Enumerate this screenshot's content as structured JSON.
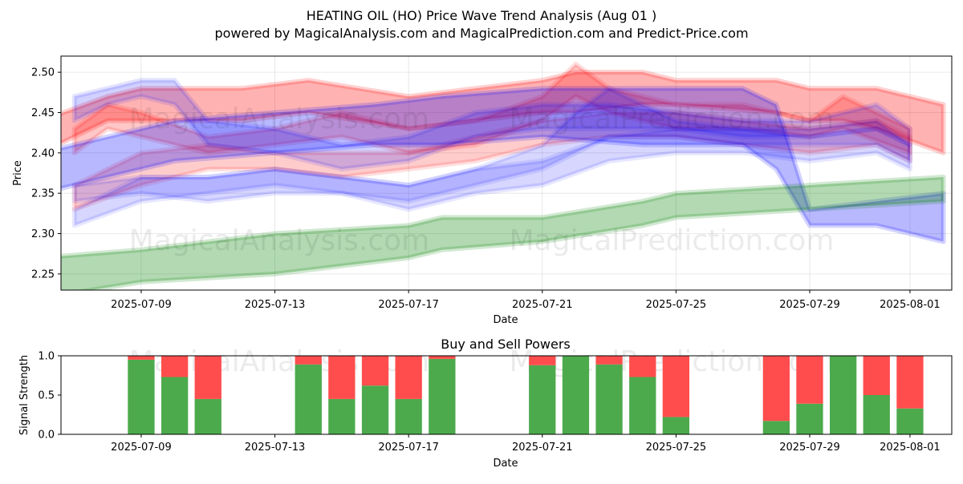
{
  "title_line1": "HEATING OIL (HO) Price Wave Trend Analysis (Aug 01 )",
  "title_line2": "powered by MagicalAnalysis.com and MagicalPrediction.com and Predict-Price.com",
  "watermarks": [
    "MagicalAnalysis.com",
    "MagicalPrediction.com"
  ],
  "chart_data": [
    {
      "type": "area",
      "title": "",
      "xlabel": "Date",
      "ylabel": "Price",
      "xlim": [
        "2025-07-06",
        "2025-08-02"
      ],
      "ylim": [
        2.23,
        2.52
      ],
      "yticks": [
        2.25,
        2.3,
        2.35,
        2.4,
        2.45,
        2.5
      ],
      "xticks": [
        "2025-07-09",
        "2025-07-13",
        "2025-07-17",
        "2025-07-21",
        "2025-07-25",
        "2025-07-29",
        "2025-08-01"
      ],
      "grid": true,
      "colors": {
        "red": "#ff0000",
        "blue": "#0000ff",
        "green": "#008000"
      },
      "series": [
        {
          "color": "red",
          "opacity": 0.3,
          "dates": [
            "2025-07-06",
            "2025-07-08",
            "2025-07-09",
            "2025-07-12",
            "2025-07-14",
            "2025-07-17",
            "2025-07-19",
            "2025-07-21",
            "2025-07-22",
            "2025-07-24",
            "2025-07-25",
            "2025-07-28",
            "2025-07-29",
            "2025-07-30",
            "2025-07-31",
            "2025-08-02"
          ],
          "lower": [
            2.4,
            2.44,
            2.44,
            2.44,
            2.45,
            2.43,
            2.44,
            2.45,
            2.45,
            2.46,
            2.46,
            2.45,
            2.44,
            2.44,
            2.43,
            2.4
          ],
          "upper": [
            2.44,
            2.47,
            2.48,
            2.48,
            2.49,
            2.47,
            2.48,
            2.49,
            2.5,
            2.5,
            2.49,
            2.49,
            2.48,
            2.48,
            2.48,
            2.46
          ]
        },
        {
          "color": "red",
          "opacity": 0.22,
          "dates": [
            "2025-07-07",
            "2025-07-08",
            "2025-07-09",
            "2025-07-11",
            "2025-07-13",
            "2025-07-15",
            "2025-07-17",
            "2025-07-19",
            "2025-07-21",
            "2025-07-22",
            "2025-07-23",
            "2025-07-25",
            "2025-07-27",
            "2025-07-29",
            "2025-07-30",
            "2025-08-01"
          ],
          "lower": [
            2.4,
            2.43,
            2.42,
            2.4,
            2.41,
            2.42,
            2.4,
            2.41,
            2.44,
            2.47,
            2.45,
            2.43,
            2.43,
            2.42,
            2.43,
            2.4
          ],
          "upper": [
            2.43,
            2.46,
            2.45,
            2.42,
            2.43,
            2.45,
            2.43,
            2.44,
            2.47,
            2.51,
            2.48,
            2.46,
            2.46,
            2.44,
            2.47,
            2.43
          ]
        },
        {
          "color": "red",
          "opacity": 0.2,
          "dates": [
            "2025-07-07",
            "2025-07-09",
            "2025-07-11",
            "2025-07-13",
            "2025-07-15",
            "2025-07-17",
            "2025-07-19",
            "2025-07-21",
            "2025-07-23",
            "2025-07-25",
            "2025-07-27",
            "2025-07-29",
            "2025-07-31",
            "2025-08-01"
          ],
          "lower": [
            2.33,
            2.36,
            2.38,
            2.38,
            2.37,
            2.38,
            2.39,
            2.41,
            2.42,
            2.42,
            2.41,
            2.4,
            2.41,
            2.39
          ],
          "upper": [
            2.36,
            2.4,
            2.41,
            2.4,
            2.4,
            2.4,
            2.42,
            2.44,
            2.45,
            2.45,
            2.44,
            2.43,
            2.44,
            2.42
          ]
        },
        {
          "color": "blue",
          "opacity": 0.28,
          "dates": [
            "2025-07-06",
            "2025-07-08",
            "2025-07-10",
            "2025-07-13",
            "2025-07-16",
            "2025-07-18",
            "2025-07-21",
            "2025-07-24",
            "2025-07-27",
            "2025-07-28",
            "2025-07-29",
            "2025-07-31",
            "2025-08-02"
          ],
          "lower": [
            2.35,
            2.37,
            2.39,
            2.4,
            2.41,
            2.41,
            2.42,
            2.41,
            2.41,
            2.38,
            2.31,
            2.31,
            2.29
          ],
          "upper": [
            2.4,
            2.42,
            2.44,
            2.45,
            2.46,
            2.47,
            2.48,
            2.48,
            2.48,
            2.46,
            2.33,
            2.34,
            2.35
          ]
        },
        {
          "color": "blue",
          "opacity": 0.18,
          "dates": [
            "2025-07-07",
            "2025-07-08",
            "2025-07-09",
            "2025-07-10",
            "2025-07-11",
            "2025-07-13",
            "2025-07-15",
            "2025-07-17",
            "2025-07-19",
            "2025-07-21",
            "2025-07-23",
            "2025-07-25",
            "2025-07-27",
            "2025-07-29",
            "2025-07-31",
            "2025-08-01"
          ],
          "lower": [
            2.44,
            2.46,
            2.47,
            2.46,
            2.41,
            2.4,
            2.38,
            2.39,
            2.42,
            2.43,
            2.43,
            2.43,
            2.42,
            2.42,
            2.43,
            2.41
          ],
          "upper": [
            2.47,
            2.48,
            2.49,
            2.49,
            2.44,
            2.43,
            2.41,
            2.42,
            2.45,
            2.46,
            2.46,
            2.45,
            2.44,
            2.44,
            2.46,
            2.43
          ]
        },
        {
          "color": "blue",
          "opacity": 0.16,
          "dates": [
            "2025-07-07",
            "2025-07-09",
            "2025-07-11",
            "2025-07-13",
            "2025-07-15",
            "2025-07-17",
            "2025-07-19",
            "2025-07-21",
            "2025-07-22",
            "2025-07-23",
            "2025-07-25",
            "2025-07-27",
            "2025-07-29",
            "2025-07-31",
            "2025-08-01"
          ],
          "lower": [
            2.31,
            2.34,
            2.35,
            2.36,
            2.35,
            2.34,
            2.36,
            2.38,
            2.4,
            2.42,
            2.42,
            2.41,
            2.41,
            2.41,
            2.39
          ],
          "upper": [
            2.33,
            2.37,
            2.37,
            2.38,
            2.37,
            2.36,
            2.38,
            2.41,
            2.45,
            2.48,
            2.44,
            2.43,
            2.43,
            2.44,
            2.41
          ]
        },
        {
          "color": "blue",
          "opacity": 0.16,
          "dates": [
            "2025-07-07",
            "2025-07-09",
            "2025-07-11",
            "2025-07-13",
            "2025-07-15",
            "2025-07-17",
            "2025-07-19",
            "2025-07-21",
            "2025-07-23",
            "2025-07-25",
            "2025-07-27",
            "2025-07-29",
            "2025-07-31",
            "2025-08-01"
          ],
          "lower": [
            2.34,
            2.35,
            2.34,
            2.35,
            2.35,
            2.33,
            2.35,
            2.36,
            2.39,
            2.4,
            2.4,
            2.39,
            2.4,
            2.38
          ],
          "upper": [
            2.36,
            2.37,
            2.37,
            2.38,
            2.37,
            2.36,
            2.38,
            2.39,
            2.42,
            2.43,
            2.43,
            2.42,
            2.43,
            2.41
          ]
        },
        {
          "color": "green",
          "opacity": 0.3,
          "dates": [
            "2025-07-06",
            "2025-07-09",
            "2025-07-13",
            "2025-07-17",
            "2025-07-18",
            "2025-07-21",
            "2025-07-24",
            "2025-07-25",
            "2025-07-29",
            "2025-08-02"
          ],
          "lower": [
            2.22,
            2.24,
            2.25,
            2.27,
            2.28,
            2.29,
            2.31,
            2.32,
            2.33,
            2.34
          ],
          "upper": [
            2.27,
            2.28,
            2.3,
            2.31,
            2.32,
            2.32,
            2.34,
            2.35,
            2.36,
            2.37
          ]
        }
      ]
    },
    {
      "type": "bar",
      "title": "Buy and Sell Powers",
      "xlabel": "Date",
      "ylabel": "Signal Strength",
      "ylim": [
        0,
        1.0
      ],
      "yticks": [
        "0.0",
        "0.5",
        "1.0"
      ],
      "xticks": [
        "2025-07-09",
        "2025-07-13",
        "2025-07-17",
        "2025-07-21",
        "2025-07-25",
        "2025-07-29",
        "2025-08-01"
      ],
      "colors": {
        "buy": "#4caa4c",
        "sell": "#ff4d4d"
      },
      "dates": [
        "2025-07-09",
        "2025-07-10",
        "2025-07-11",
        "2025-07-14",
        "2025-07-15",
        "2025-07-16",
        "2025-07-17",
        "2025-07-18",
        "2025-07-21",
        "2025-07-22",
        "2025-07-23",
        "2025-07-24",
        "2025-07-25",
        "2025-07-28",
        "2025-07-29",
        "2025-07-30",
        "2025-07-31",
        "2025-08-01"
      ],
      "buy": [
        0.95,
        0.73,
        0.45,
        0.89,
        0.45,
        0.62,
        0.45,
        0.96,
        0.88,
        1.0,
        0.89,
        0.73,
        0.22,
        0.17,
        0.39,
        1.0,
        0.5,
        0.33
      ]
    }
  ]
}
